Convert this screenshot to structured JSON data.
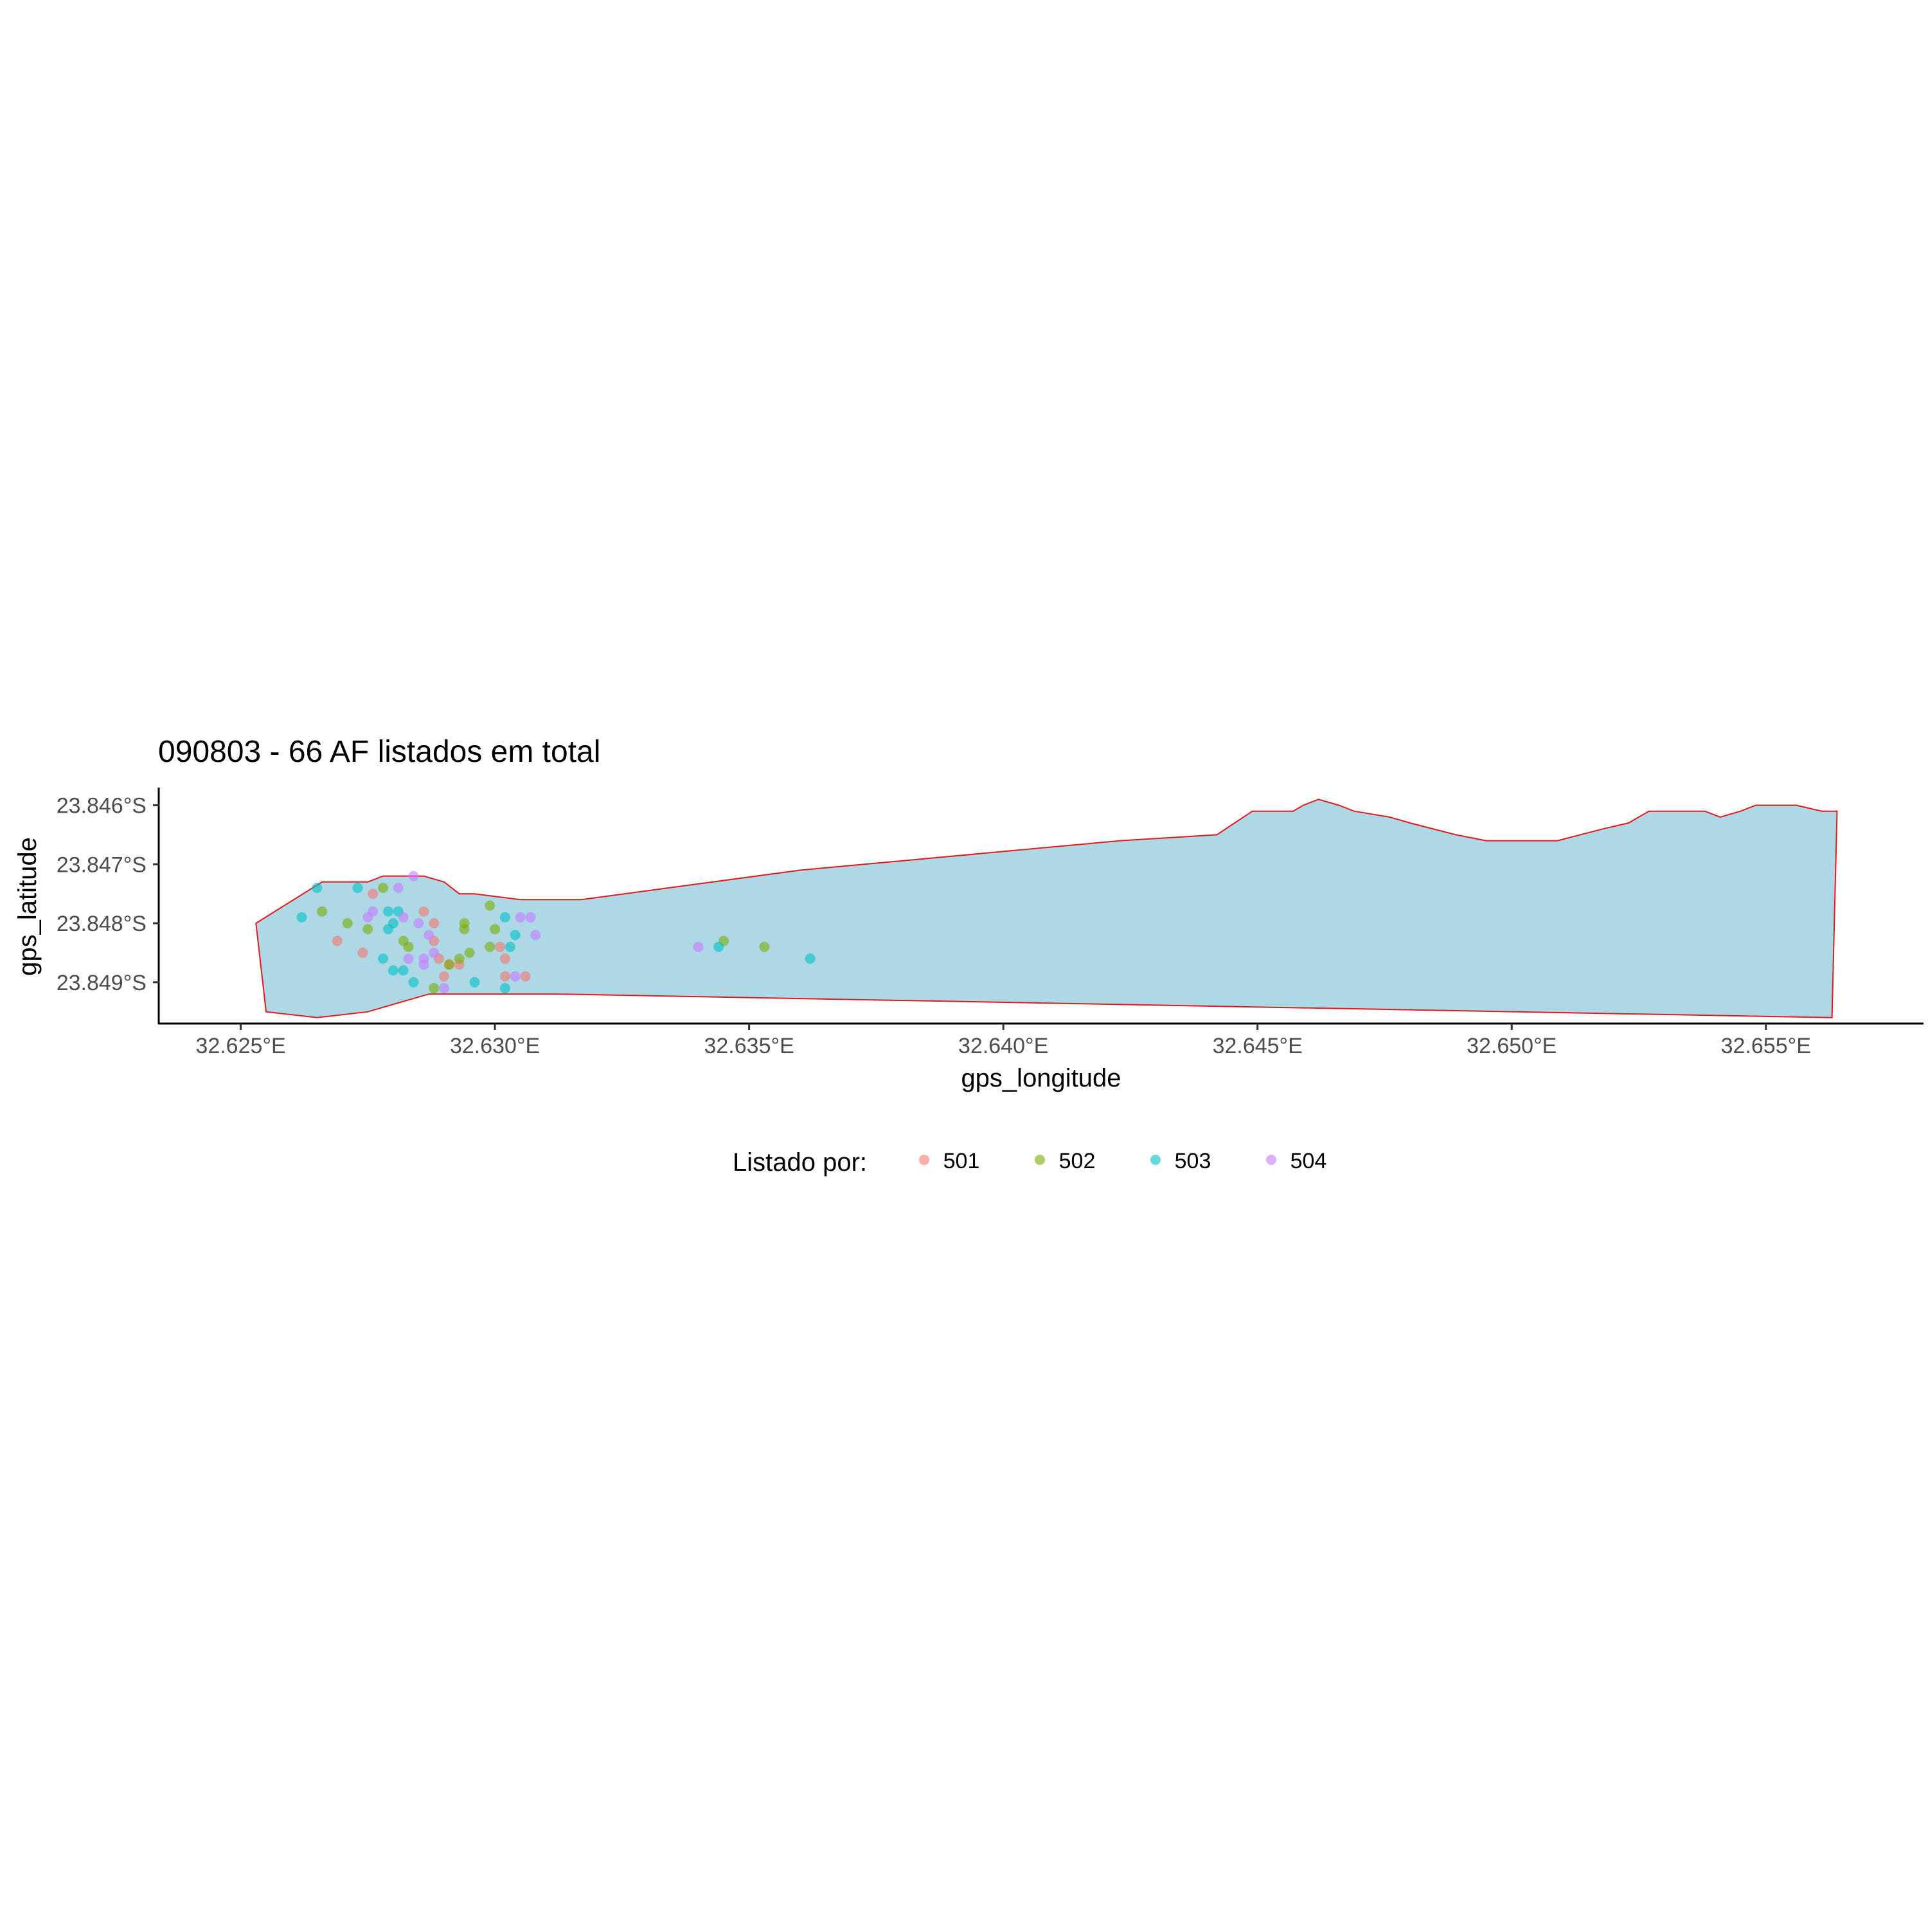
{
  "chart_data": {
    "type": "scatter",
    "title": "090803 - 66 AF listados em total",
    "xlabel": "gps_longitude",
    "ylabel": "gps_latitude",
    "xlim": [
      32.6234,
      32.6581
    ],
    "ylim": [
      -23.8497,
      -23.8457
    ],
    "x_ticks": [
      {
        "value": 32.625,
        "label": "32.625°E"
      },
      {
        "value": 32.63,
        "label": "32.630°E"
      },
      {
        "value": 32.635,
        "label": "32.635°E"
      },
      {
        "value": 32.64,
        "label": "32.640°E"
      },
      {
        "value": 32.645,
        "label": "32.645°E"
      },
      {
        "value": 32.65,
        "label": "32.650°E"
      },
      {
        "value": 32.655,
        "label": "32.655°E"
      }
    ],
    "y_ticks": [
      {
        "value": -23.846,
        "label": "23.846°S"
      },
      {
        "value": -23.847,
        "label": "23.847°S"
      },
      {
        "value": -23.848,
        "label": "23.848°S"
      },
      {
        "value": -23.849,
        "label": "23.849°S"
      }
    ],
    "grid": false,
    "legend": {
      "title": "Listado por:",
      "position": "bottom"
    },
    "area": {
      "fill": "#add8e6",
      "stroke": "#e31a1c",
      "points": [
        [
          32.6253,
          -23.848
        ],
        [
          32.6266,
          -23.8473
        ],
        [
          32.6275,
          -23.8473
        ],
        [
          32.6278,
          -23.8472
        ],
        [
          32.6286,
          -23.8472
        ],
        [
          32.629,
          -23.8473
        ],
        [
          32.6293,
          -23.8475
        ],
        [
          32.6296,
          -23.8475
        ],
        [
          32.6305,
          -23.8476
        ],
        [
          32.6317,
          -23.8476
        ],
        [
          32.636,
          -23.8471
        ],
        [
          32.6423,
          -23.8466
        ],
        [
          32.6442,
          -23.8465
        ],
        [
          32.6449,
          -23.8461
        ],
        [
          32.6457,
          -23.8461
        ],
        [
          32.6459,
          -23.846
        ],
        [
          32.6462,
          -23.8459
        ],
        [
          32.6466,
          -23.846
        ],
        [
          32.6469,
          -23.8461
        ],
        [
          32.6476,
          -23.8462
        ],
        [
          32.648,
          -23.8463
        ],
        [
          32.6489,
          -23.8465
        ],
        [
          32.6495,
          -23.8466
        ],
        [
          32.6509,
          -23.8466
        ],
        [
          32.6518,
          -23.8464
        ],
        [
          32.6523,
          -23.8463
        ],
        [
          32.6527,
          -23.8461
        ],
        [
          32.6538,
          -23.8461
        ],
        [
          32.6541,
          -23.8462
        ],
        [
          32.6545,
          -23.8461
        ],
        [
          32.6548,
          -23.846
        ],
        [
          32.6553,
          -23.846
        ],
        [
          32.6556,
          -23.846
        ],
        [
          32.6561,
          -23.8461
        ],
        [
          32.6564,
          -23.8461
        ],
        [
          32.6563,
          -23.8496
        ],
        [
          32.6312,
          -23.8492
        ],
        [
          32.6297,
          -23.8492
        ],
        [
          32.6287,
          -23.8492
        ],
        [
          32.6275,
          -23.8495
        ],
        [
          32.6265,
          -23.8496
        ],
        [
          32.6255,
          -23.8495
        ]
      ]
    },
    "series": [
      {
        "name": "501",
        "color": "#f8766d",
        "points": [
          [
            32.6269,
            -23.8483
          ],
          [
            32.6274,
            -23.8485
          ],
          [
            32.6276,
            -23.8475
          ],
          [
            32.6286,
            -23.8478
          ],
          [
            32.6288,
            -23.848
          ],
          [
            32.6288,
            -23.8483
          ],
          [
            32.6289,
            -23.8486
          ],
          [
            32.629,
            -23.8489
          ],
          [
            32.6291,
            -23.8487
          ],
          [
            32.6293,
            -23.8487
          ],
          [
            32.6301,
            -23.8484
          ],
          [
            32.6302,
            -23.8486
          ],
          [
            32.6302,
            -23.8489
          ],
          [
            32.6306,
            -23.8489
          ]
        ]
      },
      {
        "name": "502",
        "color": "#7cae00",
        "points": [
          [
            32.6266,
            -23.8478
          ],
          [
            32.6271,
            -23.848
          ],
          [
            32.6275,
            -23.8481
          ],
          [
            32.6278,
            -23.8474
          ],
          [
            32.6282,
            -23.8483
          ],
          [
            32.6283,
            -23.8484
          ],
          [
            32.6288,
            -23.8491
          ],
          [
            32.6291,
            -23.8487
          ],
          [
            32.6293,
            -23.8486
          ],
          [
            32.6294,
            -23.848
          ],
          [
            32.6295,
            -23.8485
          ],
          [
            32.6294,
            -23.8481
          ],
          [
            32.6299,
            -23.8477
          ],
          [
            32.6299,
            -23.8484
          ],
          [
            32.63,
            -23.8481
          ],
          [
            32.6345,
            -23.8483
          ],
          [
            32.6353,
            -23.8484
          ]
        ]
      },
      {
        "name": "503",
        "color": "#00bfc4",
        "points": [
          [
            32.6262,
            -23.8479
          ],
          [
            32.6265,
            -23.8474
          ],
          [
            32.6273,
            -23.8474
          ],
          [
            32.6278,
            -23.8486
          ],
          [
            32.6279,
            -23.8478
          ],
          [
            32.6279,
            -23.8481
          ],
          [
            32.628,
            -23.848
          ],
          [
            32.628,
            -23.8488
          ],
          [
            32.6281,
            -23.8478
          ],
          [
            32.6282,
            -23.8488
          ],
          [
            32.6284,
            -23.849
          ],
          [
            32.6296,
            -23.849
          ],
          [
            32.6302,
            -23.8491
          ],
          [
            32.6302,
            -23.8479
          ],
          [
            32.6303,
            -23.8484
          ],
          [
            32.6304,
            -23.8482
          ],
          [
            32.6344,
            -23.8484
          ],
          [
            32.6362,
            -23.8486
          ]
        ]
      },
      {
        "name": "504",
        "color": "#c77cff",
        "points": [
          [
            32.6275,
            -23.8479
          ],
          [
            32.6276,
            -23.8478
          ],
          [
            32.6281,
            -23.8474
          ],
          [
            32.6282,
            -23.8479
          ],
          [
            32.6283,
            -23.8486
          ],
          [
            32.6284,
            -23.8472
          ],
          [
            32.6285,
            -23.848
          ],
          [
            32.6286,
            -23.8486
          ],
          [
            32.6286,
            -23.8487
          ],
          [
            32.6287,
            -23.8482
          ],
          [
            32.6288,
            -23.8485
          ],
          [
            32.629,
            -23.8491
          ],
          [
            32.6304,
            -23.8489
          ],
          [
            32.6305,
            -23.8479
          ],
          [
            32.6307,
            -23.8479
          ],
          [
            32.6308,
            -23.8482
          ],
          [
            32.634,
            -23.8484
          ]
        ]
      }
    ]
  }
}
